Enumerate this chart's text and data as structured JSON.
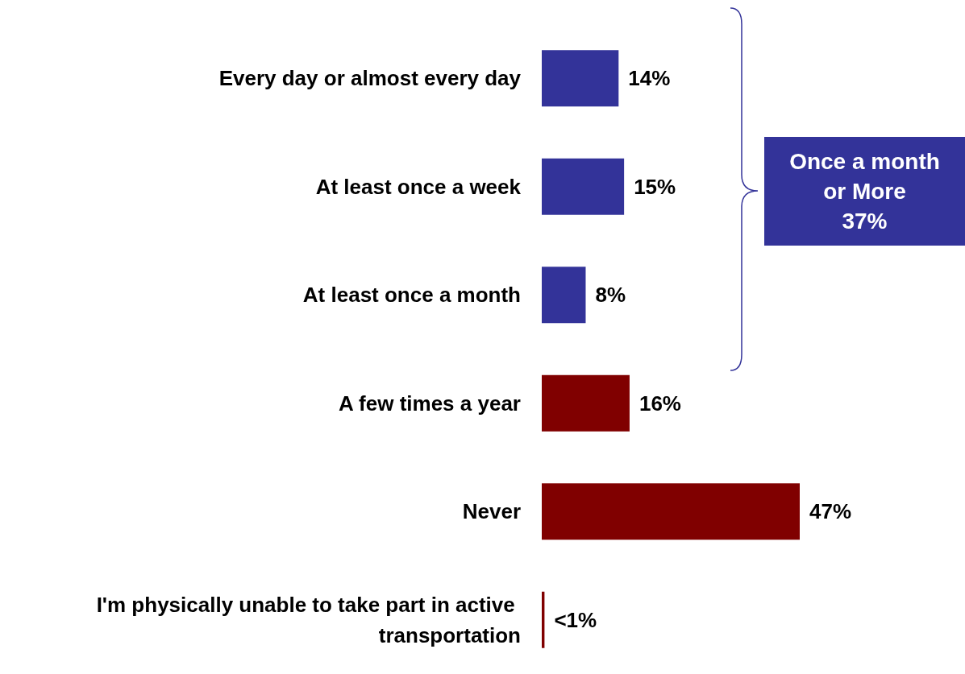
{
  "chart_data": {
    "type": "bar",
    "orientation": "horizontal",
    "categories": [
      "Every day or almost every day",
      "At least once a week",
      "At least once a month",
      "A few times a year",
      "Never",
      "I'm physically unable to take part in active transportation"
    ],
    "values": [
      14,
      15,
      8,
      16,
      47,
      0.5
    ],
    "colors": [
      "#333399",
      "#333399",
      "#333399",
      "#800000",
      "#800000",
      "#800000"
    ],
    "value_labels": [
      "14%",
      "15%",
      "8%",
      "16%",
      "47%",
      "<1%"
    ],
    "annotations": [
      "Once a month\nor More\n37%"
    ]
  }
}
